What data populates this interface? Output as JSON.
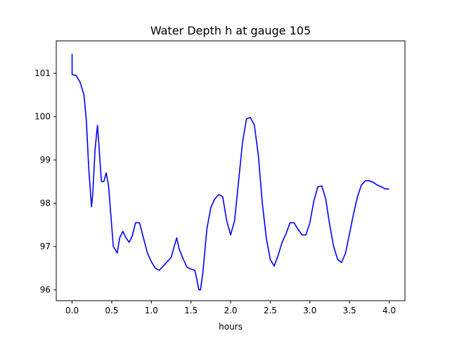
{
  "chart_data": {
    "type": "line",
    "title": "Water Depth h at gauge 105",
    "xlabel": "hours",
    "ylabel": "",
    "xlim": [
      -0.2,
      4.2
    ],
    "ylim": [
      95.75,
      101.75
    ],
    "xticks": [
      0.0,
      0.5,
      1.0,
      1.5,
      2.0,
      2.5,
      3.0,
      3.5,
      4.0
    ],
    "xtick_labels": [
      "0.0",
      "0.5",
      "1.0",
      "1.5",
      "2.0",
      "2.5",
      "3.0",
      "3.5",
      "4.0"
    ],
    "yticks": [
      96,
      97,
      98,
      99,
      100,
      101
    ],
    "ytick_labels": [
      "96",
      "97",
      "98",
      "99",
      "100",
      "101"
    ],
    "grid": false,
    "line_color": "#0000ff",
    "series": [
      {
        "x": [
          0.0,
          0.0,
          0.0,
          0.05,
          0.1,
          0.15,
          0.18,
          0.21,
          0.245,
          0.26,
          0.29,
          0.32,
          0.34,
          0.37,
          0.4,
          0.43,
          0.46,
          0.49,
          0.52,
          0.57,
          0.6,
          0.64,
          0.68,
          0.72,
          0.76,
          0.8,
          0.85,
          0.9,
          0.95,
          1.0,
          1.05,
          1.1,
          1.15,
          1.2,
          1.25,
          1.28,
          1.32,
          1.35,
          1.4,
          1.45,
          1.5,
          1.55,
          1.6,
          1.62,
          1.65,
          1.7,
          1.75,
          1.8,
          1.85,
          1.9,
          1.95,
          2.0,
          2.05,
          2.1,
          2.15,
          2.2,
          2.25,
          2.3,
          2.35,
          2.4,
          2.45,
          2.5,
          2.55,
          2.6,
          2.65,
          2.7,
          2.75,
          2.8,
          2.85,
          2.9,
          2.95,
          3.0,
          3.05,
          3.1,
          3.15,
          3.2,
          3.25,
          3.3,
          3.35,
          3.4,
          3.45,
          3.5,
          3.55,
          3.6,
          3.65,
          3.7,
          3.75,
          3.8,
          3.85,
          3.9,
          3.95,
          4.0
        ],
        "y": [
          101.45,
          100.97,
          100.97,
          100.95,
          100.8,
          100.5,
          99.9,
          98.8,
          97.92,
          98.2,
          99.25,
          99.8,
          99.3,
          98.5,
          98.5,
          98.7,
          98.4,
          97.7,
          97.0,
          96.85,
          97.2,
          97.35,
          97.2,
          97.1,
          97.25,
          97.55,
          97.55,
          97.2,
          96.85,
          96.65,
          96.5,
          96.45,
          96.55,
          96.65,
          96.75,
          96.95,
          97.2,
          96.95,
          96.72,
          96.52,
          96.48,
          96.45,
          96.0,
          96.0,
          96.4,
          97.4,
          97.9,
          98.1,
          98.2,
          98.15,
          97.6,
          97.27,
          97.6,
          98.5,
          99.4,
          99.95,
          99.98,
          99.8,
          99.1,
          98.0,
          97.2,
          96.7,
          96.55,
          96.8,
          97.1,
          97.3,
          97.55,
          97.55,
          97.4,
          97.27,
          97.27,
          97.55,
          98.05,
          98.38,
          98.4,
          98.1,
          97.5,
          97.0,
          96.7,
          96.63,
          96.85,
          97.3,
          97.75,
          98.15,
          98.42,
          98.52,
          98.52,
          98.48,
          98.42,
          98.38,
          98.33,
          98.33
        ]
      }
    ]
  }
}
